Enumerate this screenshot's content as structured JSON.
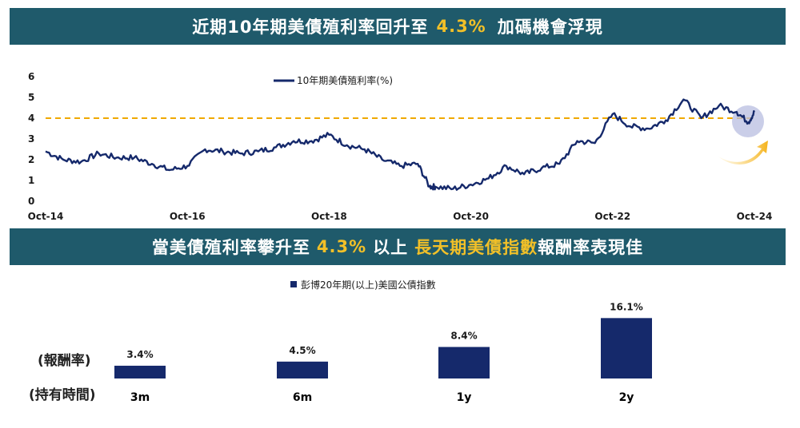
{
  "banner_top": {
    "part1": "近期10年期美債殖利率回升至",
    "highlight": "4.3%",
    "part2": "加碼機會浮現"
  },
  "banner_bottom": {
    "part1": "當美債殖利率攀升至",
    "highlight1": "4.3%",
    "part2": "以上",
    "highlight2": "長天期美債指數",
    "part3": "報酬率表現佳"
  },
  "colors": {
    "banner_bg": "#1f5a6b",
    "highlight": "#f2c028",
    "series": "#15296b",
    "reference_line": "#f0a800"
  },
  "chart_data": [
    {
      "type": "line",
      "series": [
        {
          "name": "10年期美債殖利率(%)",
          "x": [
            "2014-10",
            "2015-01",
            "2015-04",
            "2015-07",
            "2015-10",
            "2016-01",
            "2016-04",
            "2016-07",
            "2016-10",
            "2017-01",
            "2017-04",
            "2017-07",
            "2017-10",
            "2018-01",
            "2018-04",
            "2018-07",
            "2018-10",
            "2019-01",
            "2019-04",
            "2019-07",
            "2019-10",
            "2020-01",
            "2020-03",
            "2020-04",
            "2020-07",
            "2020-10",
            "2021-01",
            "2021-04",
            "2021-07",
            "2021-10",
            "2022-01",
            "2022-04",
            "2022-07",
            "2022-10",
            "2023-01",
            "2023-04",
            "2023-07",
            "2023-10",
            "2024-01",
            "2024-04",
            "2024-07",
            "2024-09",
            "2024-10"
          ],
          "values": [
            2.4,
            2.0,
            1.9,
            2.3,
            2.1,
            2.1,
            1.8,
            1.5,
            1.7,
            2.5,
            2.4,
            2.3,
            2.4,
            2.6,
            2.9,
            2.9,
            3.2,
            2.7,
            2.5,
            2.0,
            1.7,
            1.8,
            0.7,
            0.7,
            0.6,
            0.8,
            1.1,
            1.7,
            1.3,
            1.6,
            1.8,
            2.9,
            2.8,
            4.2,
            3.6,
            3.5,
            3.9,
            4.9,
            4.0,
            4.6,
            4.3,
            3.8,
            4.3
          ]
        }
      ],
      "x_ticks": [
        "Oct-14",
        "Oct-16",
        "Oct-18",
        "Oct-20",
        "Oct-22",
        "Oct-24"
      ],
      "y_ticks": [
        "0",
        "1",
        "2",
        "3",
        "4",
        "5",
        "6"
      ],
      "ylim": [
        0,
        6
      ],
      "reference_line": 4.0,
      "legend": "top-center",
      "grid": false
    },
    {
      "type": "bar",
      "series_name": "彭博20年期(以上)美國公債指數",
      "categories": [
        "3m",
        "6m",
        "1y",
        "2y"
      ],
      "values": [
        3.4,
        4.5,
        8.4,
        16.1
      ],
      "value_labels": [
        "3.4%",
        "4.5%",
        "8.4%",
        "16.1%"
      ],
      "ylabel": "(報酬率)",
      "xlabel": "(持有時間)",
      "legend": "top-center"
    }
  ]
}
